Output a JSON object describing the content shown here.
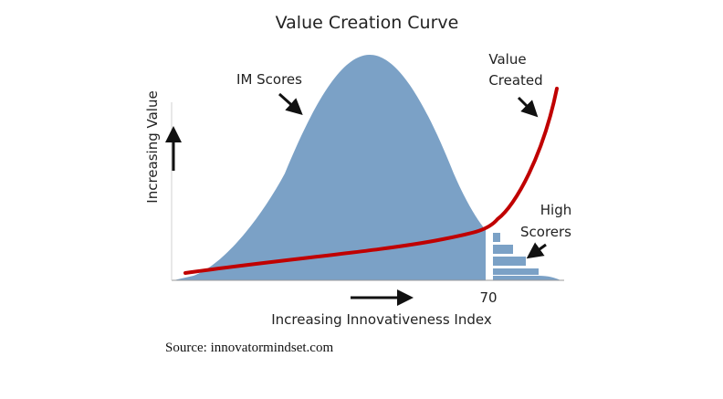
{
  "title": "Value Creation Curve",
  "labels": {
    "im_scores": "IM Scores",
    "value_created_line1": "Value",
    "value_created_line2": "Created",
    "high_scorers_line1": "High",
    "high_scorers_line2": "Scorers",
    "x_axis": "Increasing Innovativeness Index",
    "y_axis": "Increasing Value",
    "threshold_tick": "70"
  },
  "source": "Source: innovatormindset.com",
  "colors": {
    "distribution_fill": "#7ba1c6",
    "value_curve": "#c00000",
    "text": "#222222",
    "arrow": "#111111"
  }
}
